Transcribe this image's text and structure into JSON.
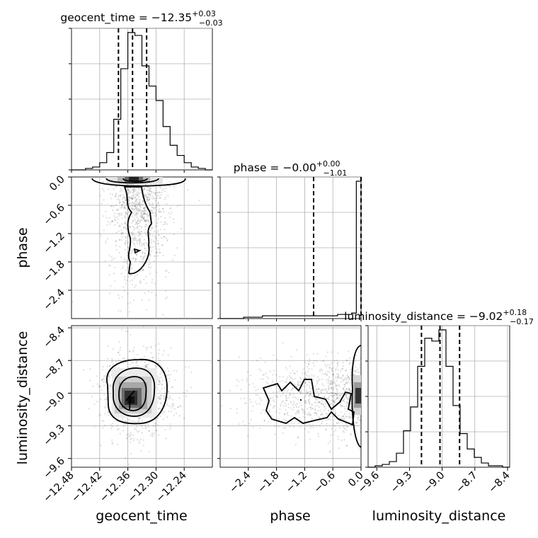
{
  "chart_data": {
    "type": "corner",
    "parameters": [
      "geocent_time",
      "phase",
      "luminosity_distance"
    ],
    "titles": [
      {
        "param": "geocent_time",
        "median": "-12.35",
        "plus": "0.03",
        "minus": "0.03"
      },
      {
        "param": "phase",
        "median": "-0.00",
        "plus": "0.00",
        "minus": "1.01"
      },
      {
        "param": "luminosity_distance",
        "median": "-9.02",
        "plus": "0.18",
        "minus": "0.17"
      }
    ],
    "ranges": {
      "geocent_time": [
        -12.48,
        -12.18
      ],
      "phase": [
        -3.0,
        0.0
      ],
      "luminosity_distance": [
        -9.68,
        -8.38
      ]
    },
    "ticks": {
      "geocent_time": {
        "values": [
          -12.48,
          -12.42,
          -12.36,
          -12.3,
          -12.24
        ],
        "labels": [
          "−12.48",
          "−12.42",
          "−12.36",
          "−12.30",
          "−12.24"
        ]
      },
      "phase": {
        "values": [
          -2.4,
          -1.8,
          -1.2,
          -0.6,
          0.0
        ],
        "labels": [
          "−2.4",
          "−1.8",
          "−1.2",
          "−0.6",
          "0.0"
        ]
      },
      "luminosity_distance": {
        "values": [
          -9.6,
          -9.3,
          -9.0,
          -8.7,
          -8.4
        ],
        "labels": [
          "−9.6",
          "−9.3",
          "−9.0",
          "−8.7",
          "−8.4"
        ]
      }
    },
    "quantiles": {
      "geocent_time": [
        -12.38,
        -12.35,
        -12.32
      ],
      "phase": [
        -1.01,
        0.0
      ],
      "luminosity_distance": [
        -9.19,
        -9.02,
        -8.84
      ]
    },
    "histograms": {
      "geocent_time": {
        "range": [
          -12.48,
          -12.18
        ],
        "counts": [
          0,
          0,
          1,
          2,
          5,
          12,
          35,
          70,
          95,
          93,
          72,
          58,
          48,
          30,
          17,
          10,
          5,
          2,
          1,
          0
        ]
      },
      "phase": {
        "range": [
          -3.0,
          0.0
        ],
        "counts": [
          0,
          0,
          0,
          0,
          0,
          1,
          1,
          1,
          1,
          2,
          2,
          2,
          2,
          2,
          2,
          2,
          2,
          2,
          2,
          2,
          2,
          2,
          2,
          2,
          2,
          3,
          3,
          3,
          4,
          100
        ]
      },
      "luminosity_distance": {
        "range": [
          -9.68,
          -8.38
        ],
        "counts": [
          0,
          1,
          2,
          4,
          10,
          26,
          43,
          72,
          92,
          90,
          98,
          72,
          44,
          24,
          13,
          7,
          3,
          1,
          1,
          0
        ]
      }
    },
    "grid": true,
    "axis_labels": [
      "geocent_time",
      "phase",
      "luminosity_distance"
    ]
  }
}
